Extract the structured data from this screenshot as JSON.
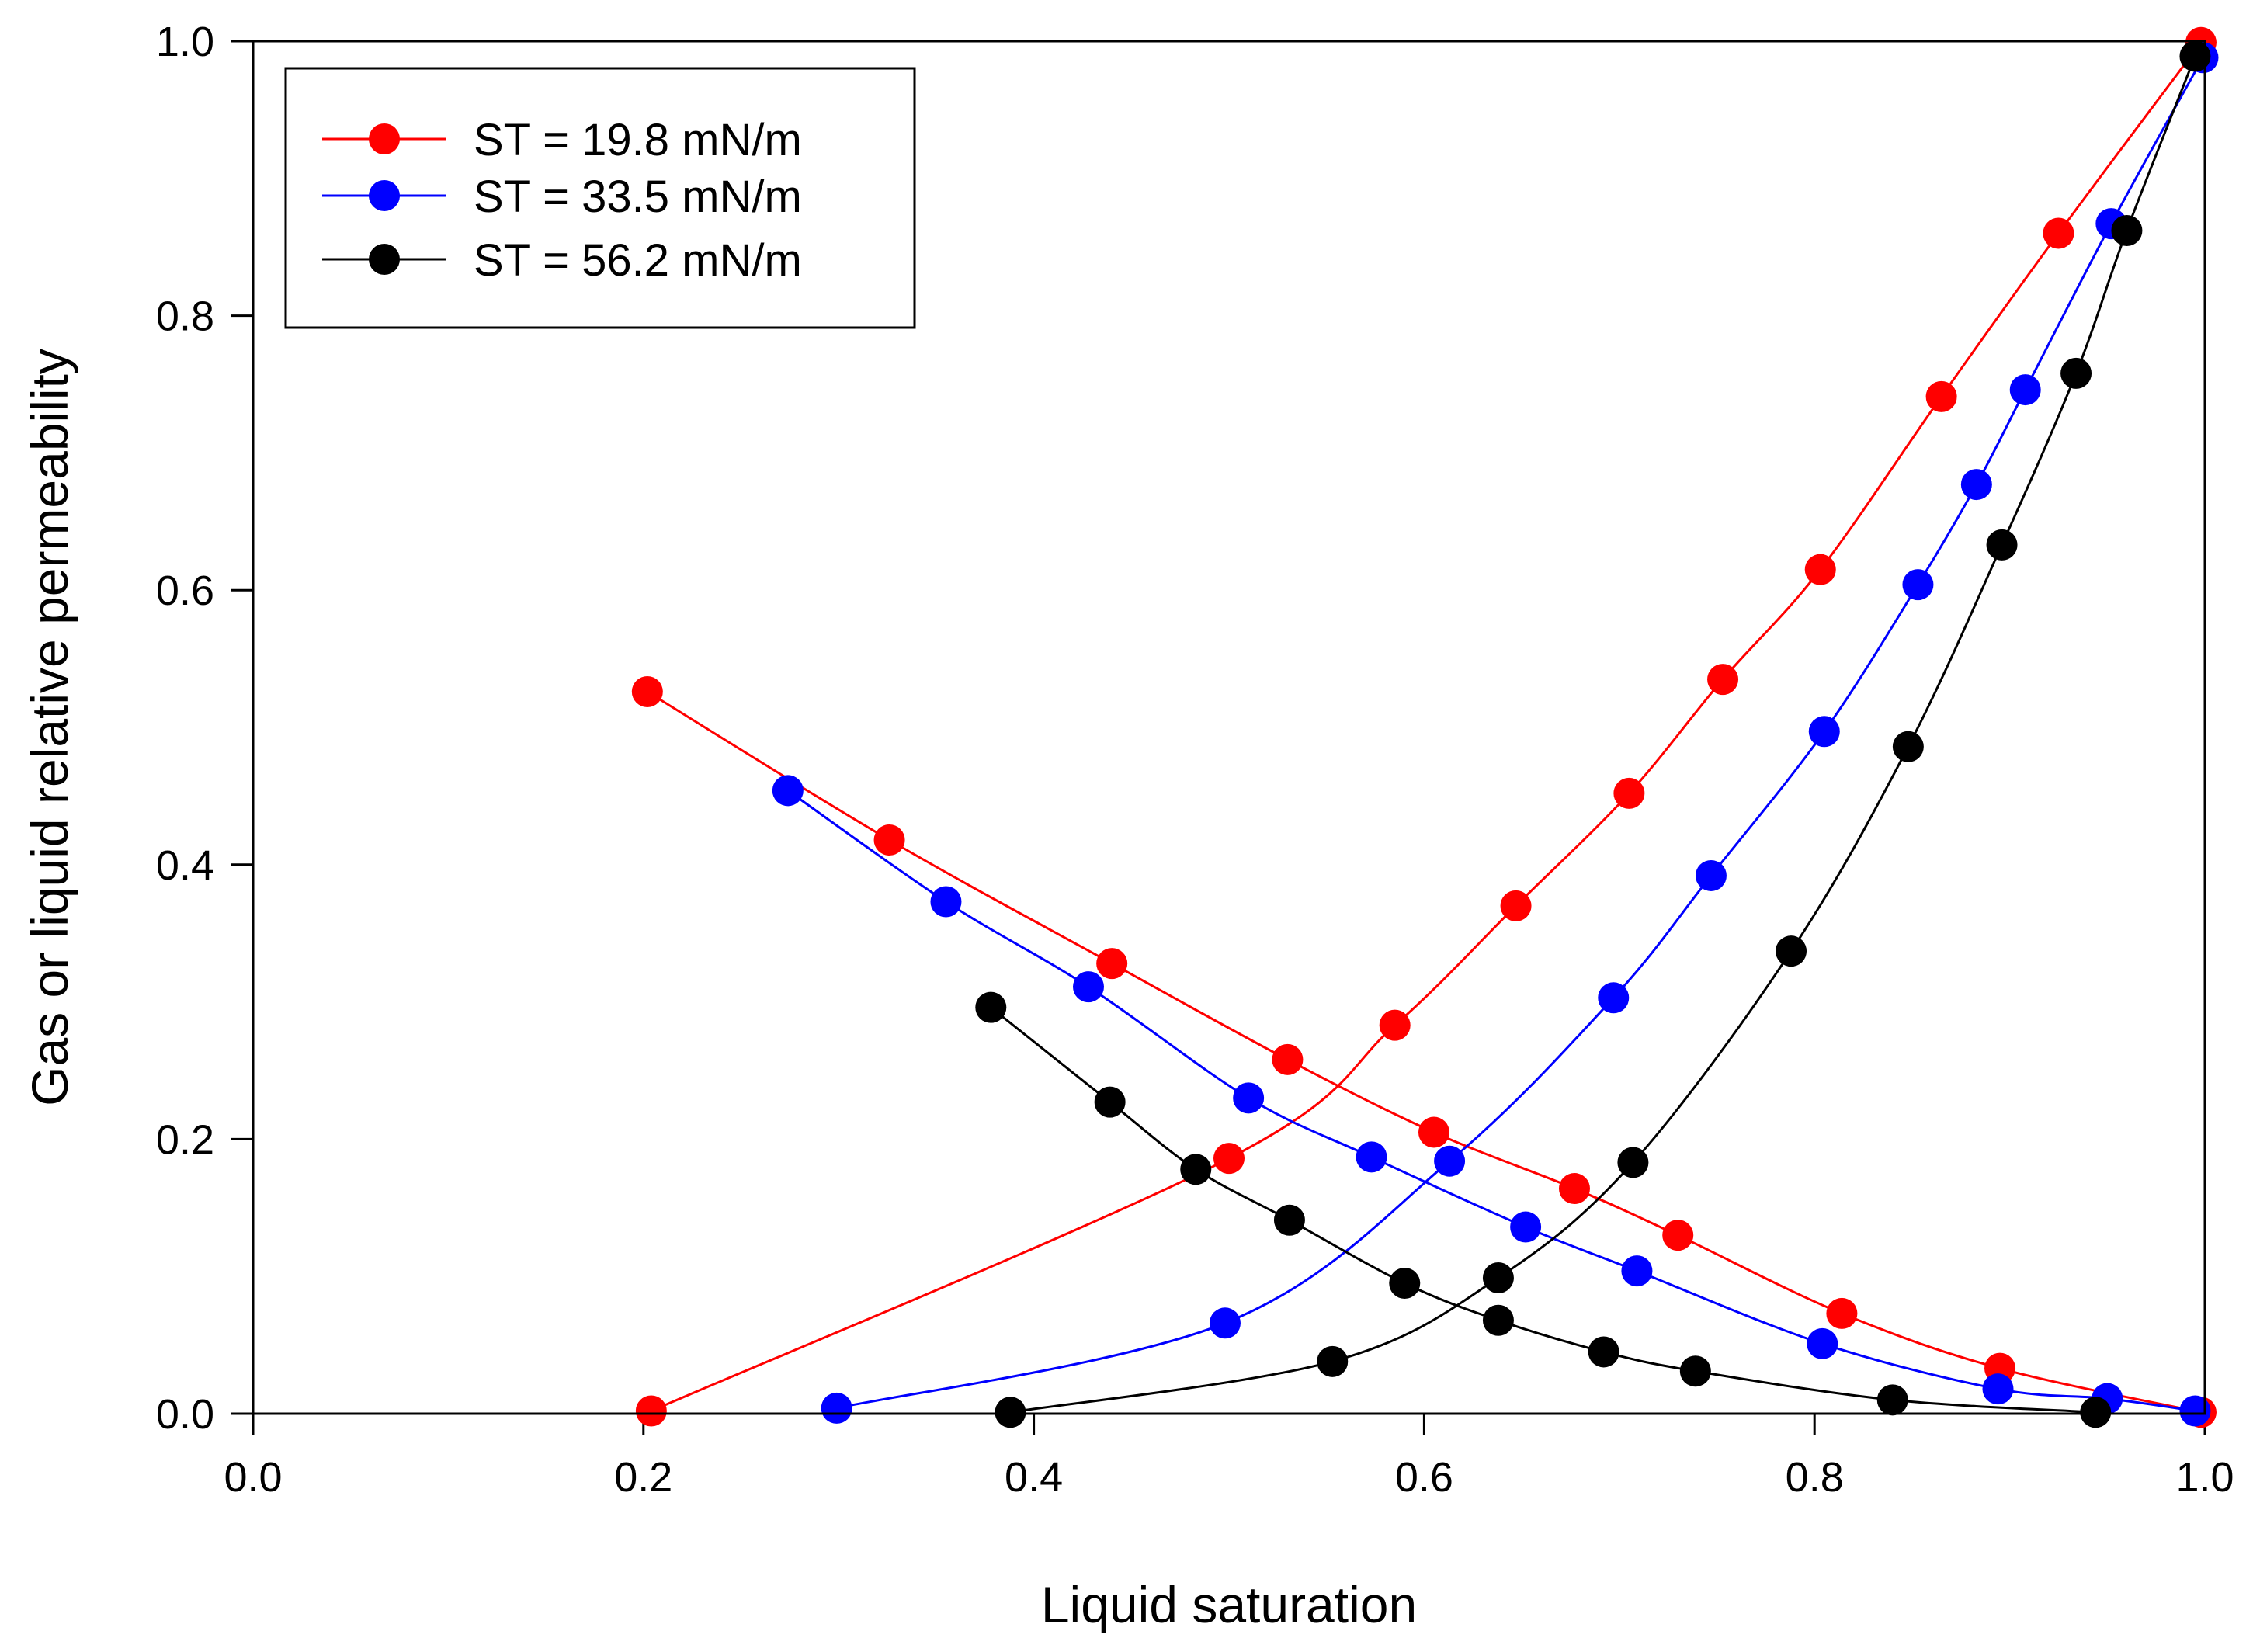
{
  "chart_data": {
    "type": "scatter",
    "title": "",
    "xlabel": "Liquid saturation",
    "ylabel": "Gas or liquid relative permeability",
    "xlim": [
      0.0,
      1.0
    ],
    "ylim": [
      0.0,
      1.0
    ],
    "xticks": [
      "0.0",
      "0.2",
      "0.4",
      "0.6",
      "0.8",
      "1.0"
    ],
    "yticks": [
      "0.0",
      "0.2",
      "0.4",
      "0.6",
      "0.8",
      "1.0"
    ],
    "grid": false,
    "legend_position": "top-left",
    "series": [
      {
        "name": "ST = 19.8 mN/m",
        "color": "#ff0000",
        "liquid": [
          {
            "x": 0.204,
            "y": 0.002
          },
          {
            "x": 0.5,
            "y": 0.186
          },
          {
            "x": 0.585,
            "y": 0.283
          },
          {
            "x": 0.647,
            "y": 0.37
          },
          {
            "x": 0.705,
            "y": 0.452
          },
          {
            "x": 0.753,
            "y": 0.535
          },
          {
            "x": 0.803,
            "y": 0.615
          },
          {
            "x": 0.865,
            "y": 0.741
          },
          {
            "x": 0.925,
            "y": 0.86
          },
          {
            "x": 0.998,
            "y": 0.999
          }
        ],
        "gas": [
          {
            "x": 0.202,
            "y": 0.526
          },
          {
            "x": 0.326,
            "y": 0.418
          },
          {
            "x": 0.44,
            "y": 0.328
          },
          {
            "x": 0.53,
            "y": 0.258
          },
          {
            "x": 0.605,
            "y": 0.205
          },
          {
            "x": 0.677,
            "y": 0.164
          },
          {
            "x": 0.73,
            "y": 0.13
          },
          {
            "x": 0.814,
            "y": 0.073
          },
          {
            "x": 0.895,
            "y": 0.033
          },
          {
            "x": 0.998,
            "y": 0.001
          }
        ]
      },
      {
        "name": "ST = 33.5 mN/m",
        "color": "#0000ff",
        "liquid": [
          {
            "x": 0.299,
            "y": 0.004
          },
          {
            "x": 0.498,
            "y": 0.066
          },
          {
            "x": 0.613,
            "y": 0.184
          },
          {
            "x": 0.697,
            "y": 0.303
          },
          {
            "x": 0.747,
            "y": 0.392
          },
          {
            "x": 0.805,
            "y": 0.497
          },
          {
            "x": 0.853,
            "y": 0.604
          },
          {
            "x": 0.883,
            "y": 0.677
          },
          {
            "x": 0.908,
            "y": 0.746
          },
          {
            "x": 0.952,
            "y": 0.867
          },
          {
            "x": 0.999,
            "y": 0.988
          }
        ],
        "gas": [
          {
            "x": 0.274,
            "y": 0.454
          },
          {
            "x": 0.355,
            "y": 0.373
          },
          {
            "x": 0.428,
            "y": 0.311
          },
          {
            "x": 0.51,
            "y": 0.23
          },
          {
            "x": 0.573,
            "y": 0.187
          },
          {
            "x": 0.652,
            "y": 0.136
          },
          {
            "x": 0.709,
            "y": 0.104
          },
          {
            "x": 0.804,
            "y": 0.051
          },
          {
            "x": 0.894,
            "y": 0.018
          },
          {
            "x": 0.95,
            "y": 0.011
          },
          {
            "x": 0.995,
            "y": 0.002
          }
        ]
      },
      {
        "name": "ST = 56.2 mN/m",
        "color": "#000000",
        "liquid": [
          {
            "x": 0.388,
            "y": 0.001
          },
          {
            "x": 0.553,
            "y": 0.038
          },
          {
            "x": 0.638,
            "y": 0.099
          },
          {
            "x": 0.707,
            "y": 0.183
          },
          {
            "x": 0.788,
            "y": 0.337
          },
          {
            "x": 0.848,
            "y": 0.486
          },
          {
            "x": 0.896,
            "y": 0.633
          },
          {
            "x": 0.934,
            "y": 0.758
          },
          {
            "x": 0.96,
            "y": 0.862
          },
          {
            "x": 0.995,
            "y": 0.989
          }
        ],
        "gas": [
          {
            "x": 0.378,
            "y": 0.296
          },
          {
            "x": 0.439,
            "y": 0.227
          },
          {
            "x": 0.483,
            "y": 0.178
          },
          {
            "x": 0.531,
            "y": 0.141
          },
          {
            "x": 0.59,
            "y": 0.095
          },
          {
            "x": 0.638,
            "y": 0.068
          },
          {
            "x": 0.692,
            "y": 0.045
          },
          {
            "x": 0.739,
            "y": 0.031
          },
          {
            "x": 0.84,
            "y": 0.01
          },
          {
            "x": 0.944,
            "y": 0.001
          }
        ]
      }
    ]
  }
}
